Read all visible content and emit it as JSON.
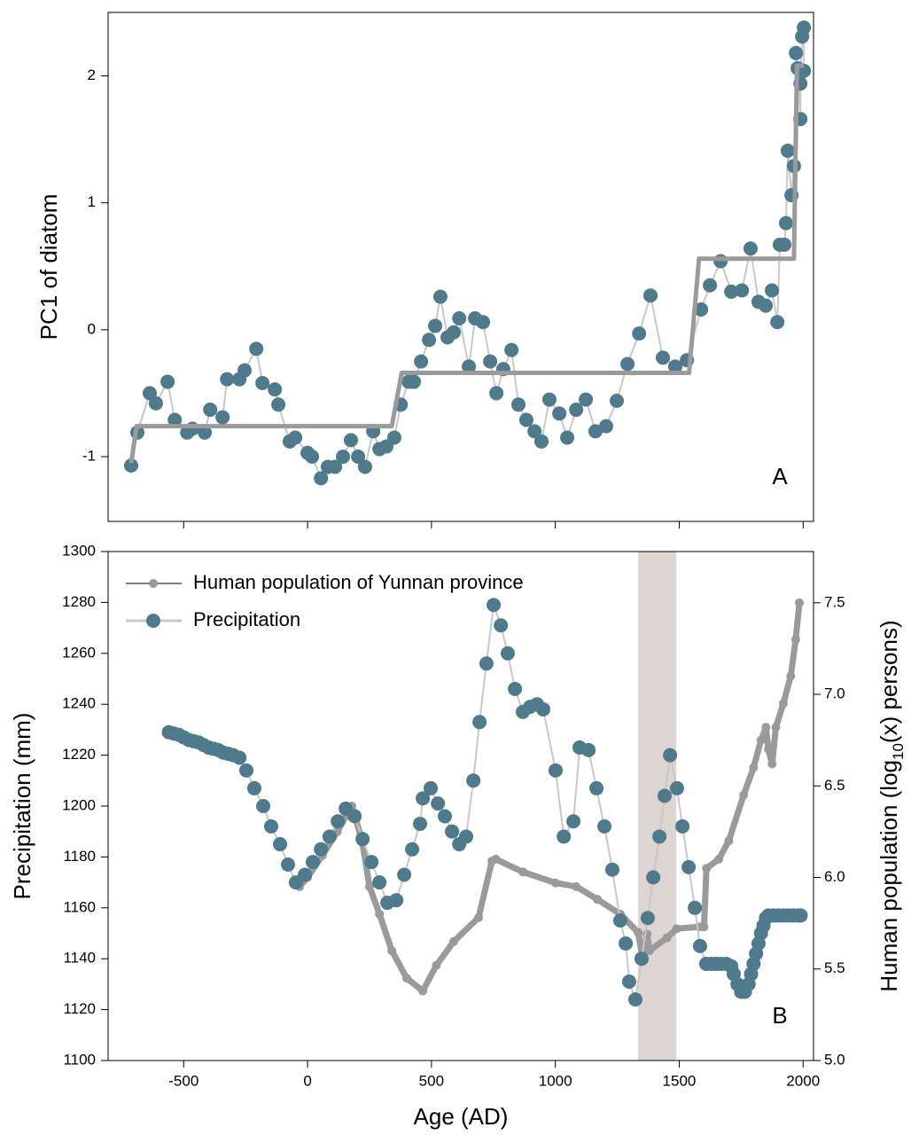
{
  "chart_data": [
    {
      "type": "scatter",
      "ylabel": "PC1 of diatom",
      "panel_label": "A",
      "xlim": [
        -805,
        2042
      ],
      "xticks": [
        -500,
        0,
        500,
        1000,
        1500,
        2000
      ],
      "ylim": [
        -1.51,
        2.5
      ],
      "yticks": [
        -1,
        0,
        1,
        2
      ],
      "series": [
        {
          "color": "#4e7a8c",
          "line_color": "#c8c8c8",
          "line_width": 2,
          "marker_size": 8,
          "x": [
            -712,
            -687,
            -637,
            -612,
            -565,
            -536,
            -486,
            -465,
            -415,
            -393,
            -343,
            -325,
            -275,
            -254,
            -207,
            -182,
            -132,
            -118,
            -72,
            -50,
            0,
            18,
            54,
            82,
            111,
            143,
            175,
            204,
            232,
            265,
            290,
            318,
            350,
            376,
            408,
            429,
            458,
            490,
            515,
            536,
            565,
            590,
            612,
            651,
            676,
            708,
            737,
            762,
            790,
            823,
            851,
            883,
            916,
            944,
            976,
            1016,
            1048,
            1084,
            1123,
            1162,
            1205,
            1248,
            1291,
            1338,
            1384,
            1434,
            1484,
            1531,
            1588,
            1624,
            1667,
            1710,
            1753,
            1788,
            1820,
            1849,
            1874,
            1896,
            1906,
            1924,
            1931,
            1938,
            1953,
            1963,
            1971,
            1978,
            1989,
            1989,
            1996,
            2003,
            2003
          ],
          "values": [
            -1.07,
            -0.81,
            -0.5,
            -0.58,
            -0.41,
            -0.71,
            -0.81,
            -0.78,
            -0.81,
            -0.63,
            -0.69,
            -0.39,
            -0.39,
            -0.32,
            -0.15,
            -0.42,
            -0.47,
            -0.59,
            -0.88,
            -0.85,
            -0.97,
            -1.0,
            -1.17,
            -1.08,
            -1.08,
            -1.0,
            -0.87,
            -1.0,
            -1.08,
            -0.8,
            -0.94,
            -0.92,
            -0.85,
            -0.59,
            -0.41,
            -0.41,
            -0.25,
            -0.08,
            0.03,
            0.26,
            -0.06,
            -0.02,
            0.09,
            -0.29,
            0.09,
            0.06,
            -0.25,
            -0.5,
            -0.31,
            -0.16,
            -0.59,
            -0.71,
            -0.8,
            -0.88,
            -0.55,
            -0.66,
            -0.85,
            -0.63,
            -0.55,
            -0.8,
            -0.76,
            -0.56,
            -0.27,
            -0.03,
            0.27,
            -0.22,
            -0.29,
            -0.24,
            0.16,
            0.35,
            0.54,
            0.3,
            0.31,
            0.64,
            0.22,
            0.19,
            0.31,
            0.06,
            0.67,
            0.67,
            0.84,
            1.41,
            1.06,
            1.29,
            2.18,
            2.06,
            1.66,
            1.94,
            2.31,
            2.38,
            2.04
          ]
        },
        {
          "line_color": "#9a9a9a",
          "line_width": 5,
          "x": [
            -712,
            -690,
            340,
            380,
            1540,
            1580,
            1963,
            1975,
            2003
          ],
          "values": [
            -1.05,
            -0.76,
            -0.76,
            -0.34,
            -0.34,
            0.56,
            0.56,
            2.08,
            2.08
          ]
        }
      ]
    },
    {
      "type": "line",
      "xlabel": "Age (AD)",
      "ylabel": "Precipitation (mm)",
      "y2label": [
        "Human population (log",
        "10",
        "(x) persons)"
      ],
      "panel_label": "B",
      "xlim": [
        -805,
        2042
      ],
      "xticks": [
        -500,
        0,
        500,
        1000,
        1500,
        2000
      ],
      "ylim": [
        1100,
        1300
      ],
      "yticks": [
        1100,
        1120,
        1140,
        1160,
        1180,
        1200,
        1220,
        1240,
        1260,
        1280,
        1300
      ],
      "y2lim": [
        5.0,
        7.78
      ],
      "y2ticks": [
        {
          "value": 5,
          "label": "5.0"
        },
        5.5,
        {
          "value": 6,
          "label": "6.0"
        },
        6.5,
        {
          "value": 7,
          "label": "7.0"
        },
        7.5
      ],
      "shaded_span": [
        1334,
        1488
      ],
      "shaded_color": "#ddd5d1",
      "series": [
        {
          "name": "Human population of Yunnan province",
          "axis": "y2",
          "color": "#9a9a9a",
          "line_color": "#9a9a9a",
          "line_width": 7,
          "marker_size": 5,
          "x": [
            -32,
            0,
            60,
            120,
            179,
            220,
            250,
            290,
            340,
            400,
            465,
            520,
            590,
            690,
            744,
            760,
            869,
            1001,
            1084,
            1170,
            1262,
            1334,
            1352,
            1370,
            1380,
            1450,
            1490,
            1580,
            1600,
            1610,
            1660,
            1700,
            1760,
            1800,
            1830,
            1850,
            1860,
            1875,
            1890,
            1920,
            1950,
            1970,
            1985
          ],
          "values": [
            5.95,
            6.0,
            6.12,
            6.25,
            6.39,
            6.2,
            5.95,
            5.8,
            5.6,
            5.45,
            5.38,
            5.52,
            5.65,
            5.78,
            6.09,
            6.1,
            6.03,
            5.97,
            5.95,
            5.88,
            5.8,
            5.7,
            5.56,
            5.69,
            5.6,
            5.67,
            5.72,
            5.73,
            5.73,
            6.05,
            6.1,
            6.2,
            6.45,
            6.6,
            6.75,
            6.82,
            6.7,
            6.62,
            6.82,
            6.95,
            7.1,
            7.3,
            7.5
          ]
        },
        {
          "name": "Precipitation",
          "color": "#4e7a8c",
          "line_color": "#c8c8c8",
          "line_width": 2,
          "marker_size": 8,
          "x": [
            -560,
            -540,
            -520,
            -500,
            -480,
            -460,
            -440,
            -420,
            -400,
            -380,
            -360,
            -340,
            -320,
            -300,
            -275,
            -247,
            -215,
            -179,
            -147,
            -111,
            -79,
            -47,
            -11,
            21,
            54,
            89,
            122,
            154,
            190,
            222,
            258,
            290,
            322,
            358,
            390,
            422,
            454,
            465,
            497,
            526,
            554,
            583,
            612,
            640,
            669,
            694,
            722,
            751,
            780,
            808,
            837,
            869,
            898,
            926,
            951,
            1001,
            1034,
            1073,
            1098,
            1134,
            1166,
            1198,
            1230,
            1262,
            1284,
            1298,
            1323,
            1348,
            1373,
            1395,
            1420,
            1441,
            1463,
            1491,
            1513,
            1538,
            1563,
            1584,
            1609,
            1630,
            1650,
            1670,
            1690,
            1710,
            1720,
            1735,
            1750,
            1765,
            1780,
            1790,
            1800,
            1810,
            1820,
            1830,
            1840,
            1850,
            1860,
            1880,
            1900,
            1920,
            1940,
            1960,
            1980,
            1990
          ],
          "values": [
            1229,
            1228.5,
            1228,
            1227,
            1226,
            1225.5,
            1225,
            1224,
            1223,
            1222.5,
            1222,
            1221,
            1220.5,
            1220,
            1219,
            1214,
            1207,
            1200,
            1192,
            1185,
            1177,
            1170,
            1173,
            1178,
            1183,
            1188,
            1194,
            1199,
            1196,
            1187,
            1178,
            1170,
            1162,
            1163,
            1173,
            1183,
            1193,
            1203,
            1207,
            1201,
            1196,
            1190,
            1185,
            1188,
            1210,
            1233,
            1256,
            1279,
            1271,
            1260,
            1246,
            1237,
            1239,
            1240,
            1238,
            1214,
            1188,
            1194,
            1223,
            1222,
            1207,
            1192,
            1175,
            1155,
            1146,
            1131,
            1124,
            1140,
            1156,
            1172,
            1188,
            1204,
            1220,
            1207,
            1192,
            1176,
            1160,
            1145,
            1138,
            1138,
            1138,
            1138,
            1138,
            1137,
            1134,
            1130,
            1127,
            1127,
            1130,
            1134,
            1138,
            1142,
            1146,
            1150,
            1153,
            1156,
            1157,
            1157,
            1157,
            1157,
            1157,
            1157,
            1157,
            1157
          ]
        }
      ]
    }
  ]
}
